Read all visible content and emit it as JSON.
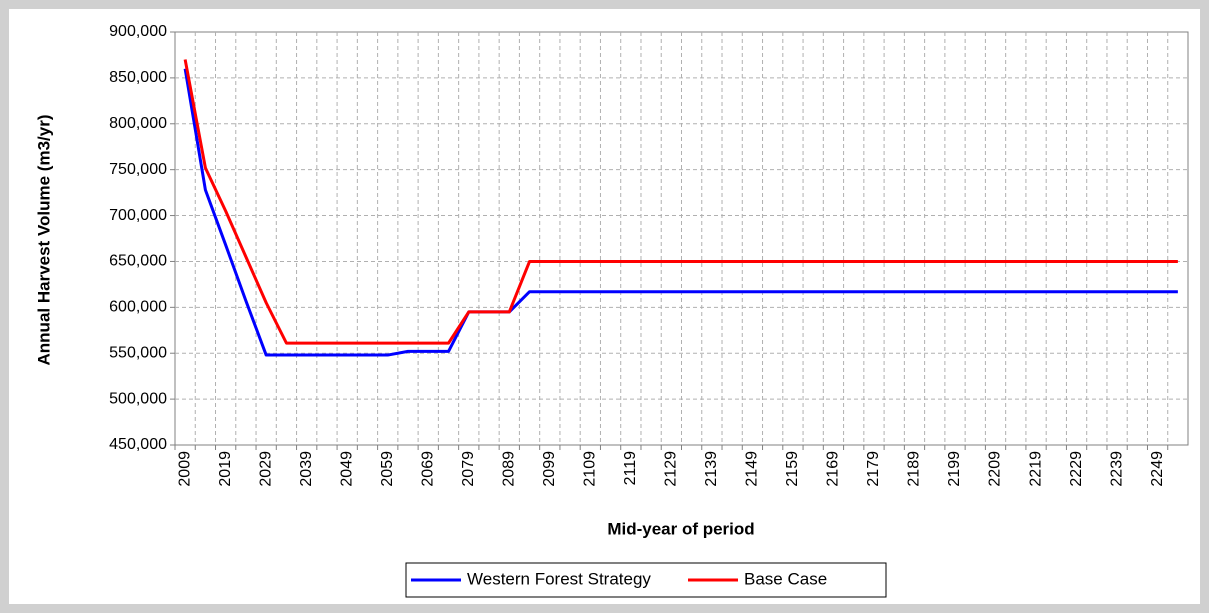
{
  "chart_data": {
    "type": "line",
    "x_label": "Mid-year of period",
    "y_label": "Annual Harvest Volume (m3/yr)",
    "categories": [
      "2009",
      null,
      "2019",
      null,
      "2029",
      null,
      "2039",
      null,
      "2049",
      null,
      "2059",
      null,
      "2069",
      null,
      "2079",
      null,
      "2089",
      null,
      "2099",
      null,
      "2109",
      null,
      "2119",
      null,
      "2129",
      null,
      "2139",
      null,
      "2149",
      null,
      "2159",
      null,
      "2169",
      null,
      "2179",
      null,
      "2189",
      null,
      "2199",
      null,
      "2209",
      null,
      "2219",
      null,
      "2229",
      null,
      "2239",
      null,
      "2249",
      null
    ],
    "series": [
      {
        "name": "Western Forest Strategy",
        "color": "#0000ff",
        "values": [
          860000,
          728000,
          668000,
          607000,
          548000,
          548000,
          548000,
          548000,
          548000,
          548000,
          548000,
          552000,
          552000,
          552000,
          595000,
          595000,
          595000,
          617000,
          617000,
          617000,
          617000,
          617000,
          617000,
          617000,
          617000,
          617000,
          617000,
          617000,
          617000,
          617000,
          617000,
          617000,
          617000,
          617000,
          617000,
          617000,
          617000,
          617000,
          617000,
          617000,
          617000,
          617000,
          617000,
          617000,
          617000,
          617000,
          617000,
          617000,
          617000,
          617000
        ]
      },
      {
        "name": "Base Case",
        "color": "#ff0000",
        "values": [
          870000,
          752000,
          705000,
          655000,
          605000,
          561000,
          561000,
          561000,
          561000,
          561000,
          561000,
          561000,
          561000,
          561000,
          595000,
          595000,
          595000,
          650000,
          650000,
          650000,
          650000,
          650000,
          650000,
          650000,
          650000,
          650000,
          650000,
          650000,
          650000,
          650000,
          650000,
          650000,
          650000,
          650000,
          650000,
          650000,
          650000,
          650000,
          650000,
          650000,
          650000,
          650000,
          650000,
          650000,
          650000,
          650000,
          650000,
          650000,
          650000,
          650000
        ]
      }
    ],
    "ylim": [
      450000,
      900000
    ],
    "yticks": [
      {
        "value": 450000,
        "label": "450,000"
      },
      {
        "value": 500000,
        "label": "500,000"
      },
      {
        "value": 550000,
        "label": "550,000"
      },
      {
        "value": 600000,
        "label": "600,000"
      },
      {
        "value": 650000,
        "label": "650,000"
      },
      {
        "value": 700000,
        "label": "700,000"
      },
      {
        "value": 750000,
        "label": "750,000"
      },
      {
        "value": 800000,
        "label": "800,000"
      },
      {
        "value": 850000,
        "label": "850,000"
      },
      {
        "value": 900000,
        "label": "900,000"
      }
    ],
    "grid": true
  }
}
